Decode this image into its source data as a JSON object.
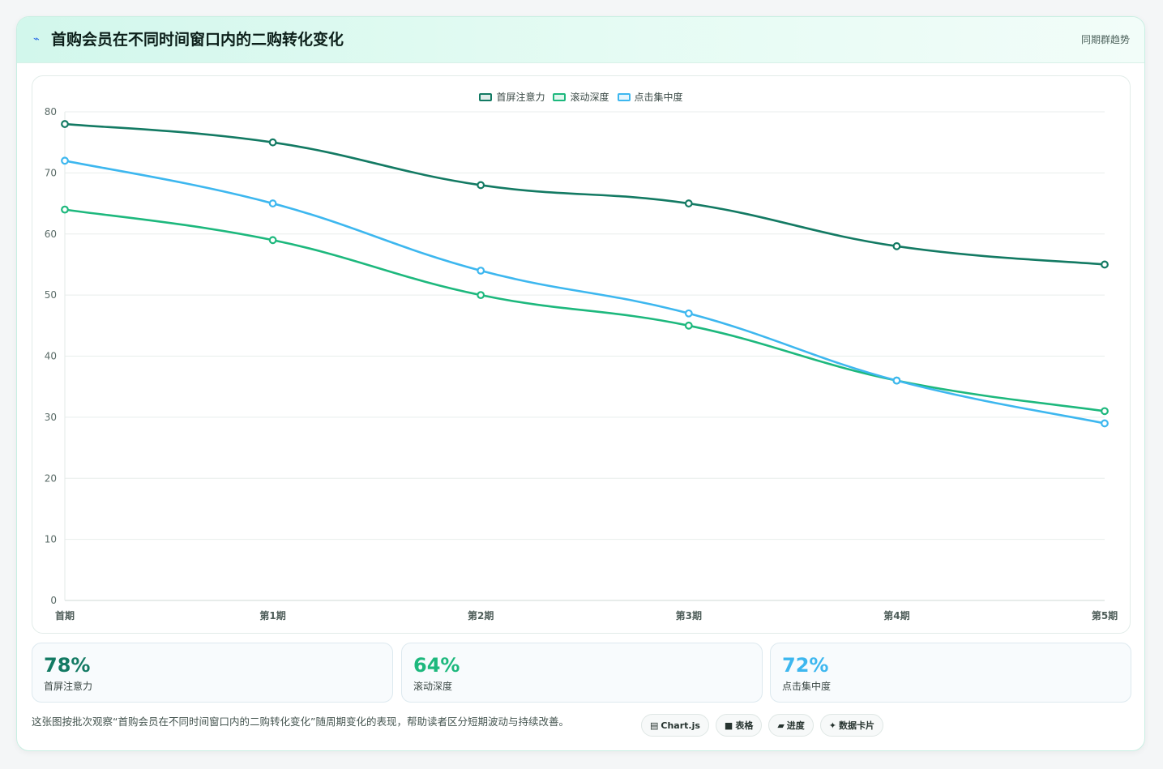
{
  "header": {
    "icon": "⌁",
    "title": "首购会员在不同时间窗口内的二购转化变化",
    "right_label": "同期群趋势"
  },
  "chart_data": {
    "type": "line",
    "categories": [
      "首期",
      "第1期",
      "第2期",
      "第3期",
      "第4期",
      "第5期"
    ],
    "series": [
      {
        "name": "首屏注意力",
        "color": "#137a63",
        "values": [
          78,
          75,
          68,
          65,
          58,
          55
        ]
      },
      {
        "name": "滚动深度",
        "color": "#1db87d",
        "values": [
          64,
          59,
          50,
          45,
          36,
          31
        ]
      },
      {
        "name": "点击集中度",
        "color": "#3db7ef",
        "values": [
          72,
          65,
          54,
          47,
          36,
          29
        ]
      }
    ],
    "ylim": [
      0,
      80
    ],
    "yticks": [
      0,
      10,
      20,
      30,
      40,
      50,
      60,
      70,
      80
    ],
    "grid": true,
    "legend": "top-center"
  },
  "stats": [
    {
      "value": "78%",
      "label": "首屏注意力",
      "color": "#137a63"
    },
    {
      "value": "64%",
      "label": "滚动深度",
      "color": "#1db87d"
    },
    {
      "value": "72%",
      "label": "点击集中度",
      "color": "#3db7ef"
    }
  ],
  "footer": {
    "note": "这张图按批次观察“首购会员在不同时间窗口内的二购转化变化”随周期变化的表现，帮助读者区分短期波动与持续改善。",
    "tags": [
      {
        "icon": "▤",
        "label": "Chart.js"
      },
      {
        "icon": "■",
        "label": "表格"
      },
      {
        "icon": "▰",
        "label": "进度"
      },
      {
        "icon": "✦",
        "label": "数据卡片"
      }
    ]
  }
}
